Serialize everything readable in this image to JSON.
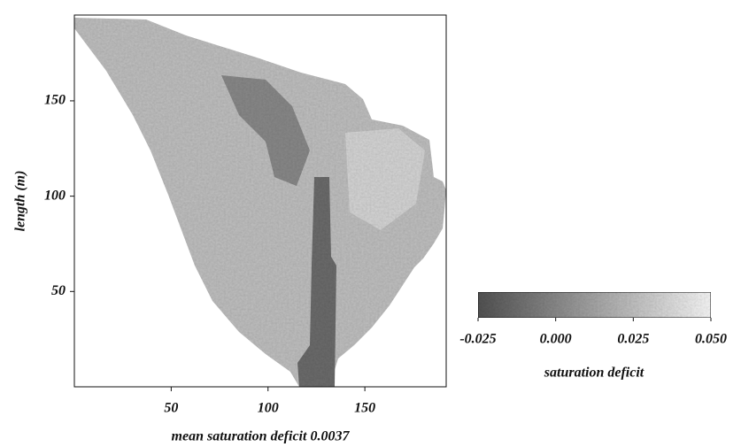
{
  "chart_data": {
    "type": "heatmap",
    "xlabel": "mean saturation deficit 0.0037",
    "ylabel": "length (m)",
    "xlim": [
      0,
      192
    ],
    "xticks": [
      50,
      100,
      150
    ],
    "ylim": [
      0,
      195
    ],
    "yticks": [
      50,
      100,
      150
    ],
    "colorbar": {
      "label": "saturation deficit",
      "colors": [
        "#555555",
        "#ffffff"
      ],
      "lim": [
        -0.025,
        0.05
      ],
      "ticks": [
        -0.025,
        {
          "value": 0,
          "label": "0.000"
        },
        0.025,
        {
          "value": 0.05,
          "label": "0.050"
        }
      ]
    }
  }
}
